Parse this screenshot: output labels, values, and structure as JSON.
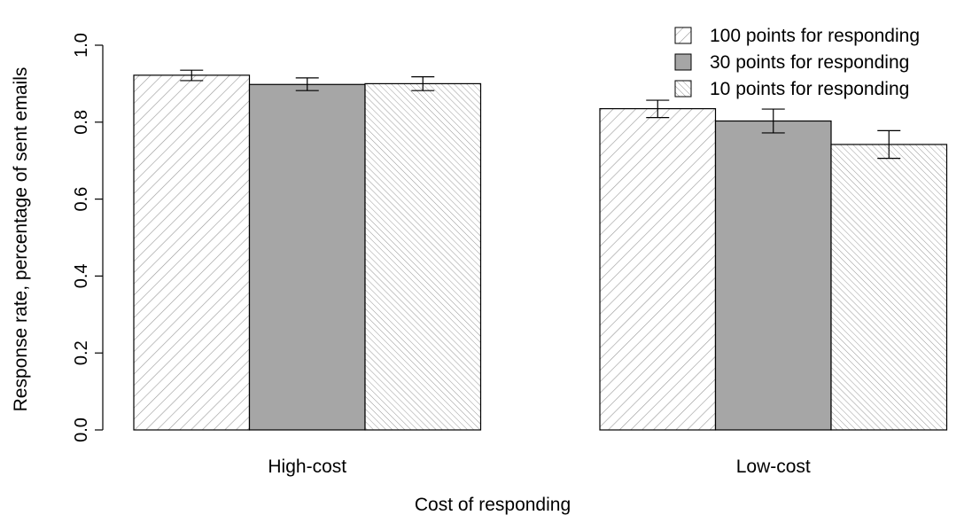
{
  "chart_data": {
    "type": "bar",
    "title": "",
    "xlabel": "Cost of responding",
    "ylabel": "Response rate, percentage of sent emails",
    "categories": [
      "High-cost",
      "Low-cost"
    ],
    "ylim": [
      0,
      1
    ],
    "yticks": [
      "0.0",
      "0.2",
      "0.4",
      "0.6",
      "0.8",
      "1.0"
    ],
    "grid": false,
    "legend_position": "top-right",
    "series": [
      {
        "name": "100 points for responding",
        "values": [
          0.922,
          0.835
        ],
        "err_low": [
          0.908,
          0.812
        ],
        "err_high": [
          0.935,
          0.857
        ],
        "fill": "#ffffff",
        "pattern": "hatch-back",
        "hatch_color": "#999999"
      },
      {
        "name": "30 points for responding",
        "values": [
          0.898,
          0.803
        ],
        "err_low": [
          0.882,
          0.772
        ],
        "err_high": [
          0.915,
          0.834
        ],
        "fill": "#a6a6a6",
        "pattern": "solid",
        "hatch_color": "#a6a6a6"
      },
      {
        "name": "10 points for responding",
        "values": [
          0.9,
          0.742
        ],
        "err_low": [
          0.882,
          0.706
        ],
        "err_high": [
          0.918,
          0.778
        ],
        "fill": "#ffffff",
        "pattern": "hatch-fwd",
        "hatch_color": "#999999"
      }
    ]
  }
}
